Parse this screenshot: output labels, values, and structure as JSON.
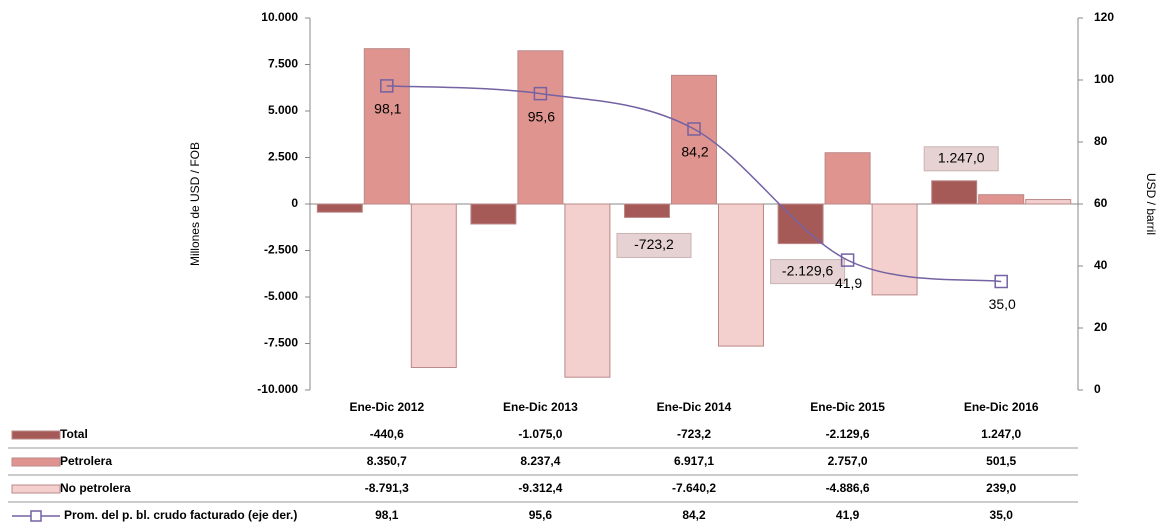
{
  "chart_data": {
    "type": "bar",
    "categories": [
      "Ene-Dic 2012",
      "Ene-Dic 2013",
      "Ene-Dic 2014",
      "Ene-Dic 2015",
      "Ene-Dic 2016"
    ],
    "ylabel": "Millones de USD / FOB",
    "y2label": "USD / barril",
    "ylim": [
      -10000,
      10000
    ],
    "yticks": [
      {
        "value": 10000,
        "label": "10.000"
      },
      {
        "value": 7500,
        "label": "7.500"
      },
      {
        "value": 5000,
        "label": "5.000"
      },
      {
        "value": 2500,
        "label": "2.500"
      },
      0,
      {
        "value": -2500,
        "label": "-2.500"
      },
      {
        "value": -5000,
        "label": "-5.000"
      },
      {
        "value": -7500,
        "label": "-7.500"
      },
      {
        "value": -10000,
        "label": "-10.000"
      }
    ],
    "y2lim": [
      0,
      120
    ],
    "y2ticks": [
      0,
      20,
      40,
      60,
      80,
      100,
      120
    ],
    "series": [
      {
        "name": "Total",
        "type": "bar",
        "color": "#a65a58",
        "values": [
          -440.6,
          -1075.0,
          -723.2,
          -2129.6,
          1247.0
        ],
        "value_labels": [
          "-440,6",
          "-1.075,0",
          "-723,2",
          "-2.129,6",
          "1.247,0"
        ]
      },
      {
        "name": "Petrolera",
        "type": "bar",
        "color": "#e0948f",
        "values": [
          8350.7,
          8237.4,
          6917.1,
          2757.0,
          501.5
        ],
        "value_labels": [
          "8.350,7",
          "8.237,4",
          "6.917,1",
          "2.757,0",
          "501,5"
        ]
      },
      {
        "name": "No petrolera",
        "type": "bar",
        "color": "#f3cfcd",
        "values": [
          -8791.3,
          -9312.4,
          -7640.2,
          -4886.6,
          239.0
        ],
        "value_labels": [
          "-8.791,3",
          "-9.312,4",
          "-7.640,2",
          "-4.886,6",
          "239,0"
        ]
      },
      {
        "name": "Prom. del p. bl. crudo facturado (eje der.)",
        "type": "line",
        "axis": "y2",
        "color": "#7462a3",
        "values": [
          98.1,
          95.6,
          84.2,
          41.9,
          35.0
        ],
        "value_labels": [
          "98,1",
          "95,6",
          "84,2",
          "41,9",
          "35,0"
        ]
      }
    ]
  }
}
